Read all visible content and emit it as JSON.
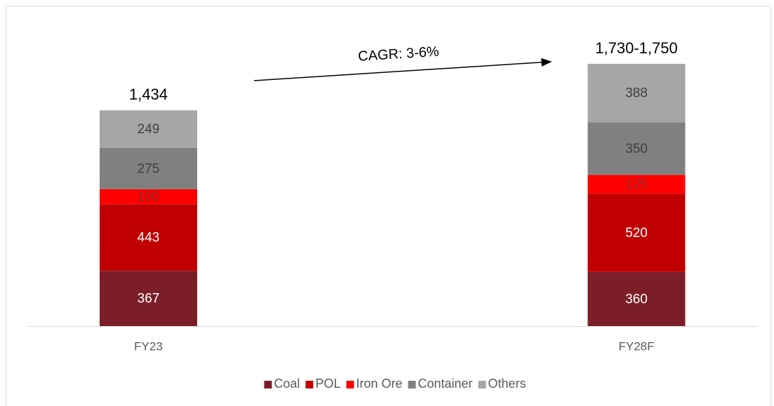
{
  "chart_data": {
    "type": "stacked_bar",
    "categories": [
      "FY23",
      "FY28F"
    ],
    "series": [
      {
        "name": "Coal",
        "color": "#7b1e28",
        "label_color": "#ffffff",
        "values": [
          367,
          360
        ]
      },
      {
        "name": "POL",
        "color": "#c00000",
        "label_color": "#ffffff",
        "values": [
          443,
          520
        ]
      },
      {
        "name": "Iron Ore",
        "color": "#ff0000",
        "label_color": "#8a2a2a",
        "values": [
          100,
          125
        ]
      },
      {
        "name": "Container",
        "color": "#808080",
        "label_color": "#404040",
        "values": [
          275,
          350
        ]
      },
      {
        "name": "Others",
        "color": "#a6a6a6",
        "label_color": "#404040",
        "values": [
          249,
          388
        ]
      }
    ],
    "total_labels": [
      "1,434",
      "1,730-1,750"
    ],
    "annotation": "CAGR: 3-6%",
    "legend": "bottom"
  }
}
